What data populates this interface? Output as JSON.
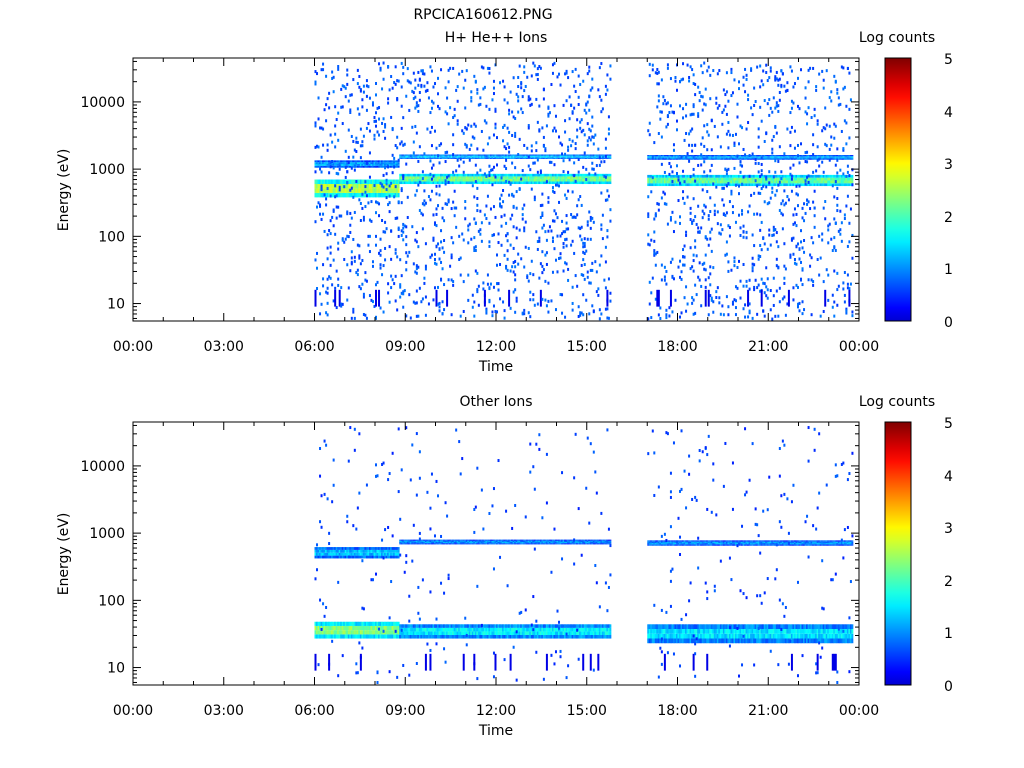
{
  "figure": {
    "title": "RPCICA160612.PNG"
  },
  "time_ticks": [
    "00:00",
    "03:00",
    "06:00",
    "09:00",
    "12:00",
    "15:00",
    "18:00",
    "21:00",
    "00:00"
  ],
  "colorbar": {
    "label": "Log counts",
    "ticks": [
      "0",
      "1",
      "2",
      "3",
      "4",
      "5"
    ],
    "range": [
      0,
      5
    ],
    "colormap": "jet"
  },
  "chart_data": [
    {
      "type": "heatmap",
      "title": "H+ He++ Ions",
      "xlabel": "Time",
      "ylabel": "Energy (eV)",
      "x_unit": "hours (UT)",
      "xlim": [
        0,
        24
      ],
      "ylim": [
        5.5,
        45000
      ],
      "yscale": "log",
      "ytick_labels": [
        "10",
        "100",
        "1000",
        "10000"
      ],
      "data_coverage_hours": [
        [
          6.0,
          15.8
        ],
        [
          17.0,
          23.8
        ]
      ],
      "bands": [
        {
          "t0": 6.0,
          "t1": 8.8,
          "e_low": 380,
          "e_high": 700,
          "log_counts": 3.0
        },
        {
          "t0": 6.0,
          "t1": 8.8,
          "e_low": 1050,
          "e_high": 1350,
          "log_counts": 1.3
        },
        {
          "t0": 8.8,
          "t1": 15.8,
          "e_low": 600,
          "e_high": 850,
          "log_counts": 2.6
        },
        {
          "t0": 8.8,
          "t1": 15.8,
          "e_low": 1420,
          "e_high": 1650,
          "log_counts": 1.5
        },
        {
          "t0": 17.0,
          "t1": 23.8,
          "e_low": 560,
          "e_high": 820,
          "log_counts": 2.5
        },
        {
          "t0": 17.0,
          "t1": 23.8,
          "e_low": 1380,
          "e_high": 1620,
          "log_counts": 1.3
        }
      ],
      "background_log_counts": 0.5,
      "sparse_dot_density": 0.2
    },
    {
      "type": "heatmap",
      "title": "Other Ions",
      "xlabel": "Time",
      "ylabel": "Energy (eV)",
      "x_unit": "hours (UT)",
      "xlim": [
        0,
        24
      ],
      "ylim": [
        5.5,
        45000
      ],
      "yscale": "log",
      "ytick_labels": [
        "10",
        "100",
        "1000",
        "10000"
      ],
      "data_coverage_hours": [
        [
          6.0,
          15.8
        ],
        [
          17.0,
          23.8
        ]
      ],
      "bands": [
        {
          "t0": 6.0,
          "t1": 8.8,
          "e_low": 420,
          "e_high": 620,
          "log_counts": 1.5
        },
        {
          "t0": 8.8,
          "t1": 15.8,
          "e_low": 680,
          "e_high": 800,
          "log_counts": 1.2
        },
        {
          "t0": 17.0,
          "t1": 23.8,
          "e_low": 650,
          "e_high": 780,
          "log_counts": 1.2
        },
        {
          "t0": 6.0,
          "t1": 8.8,
          "e_low": 27,
          "e_high": 48,
          "log_counts": 2.7
        },
        {
          "t0": 8.8,
          "t1": 15.8,
          "e_low": 27,
          "e_high": 44,
          "log_counts": 1.8
        },
        {
          "t0": 17.0,
          "t1": 23.8,
          "e_low": 23,
          "e_high": 44,
          "log_counts": 1.7
        }
      ],
      "background_log_counts": 0.4,
      "sparse_dot_density": 0.03
    }
  ]
}
